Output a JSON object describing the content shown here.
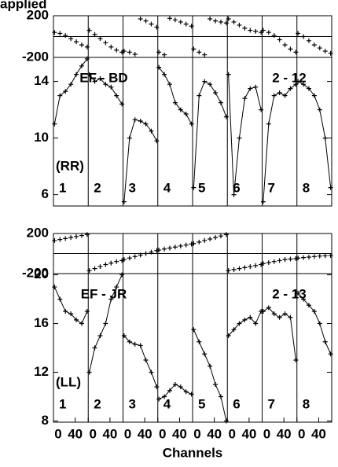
{
  "chart_data": [
    {
      "type": "scatter",
      "title": "applied",
      "color": "#000000",
      "zero_line": true,
      "x": [
        2,
        12,
        22,
        32,
        42,
        52,
        62
      ],
      "xlim": [
        0,
        64
      ],
      "ylim": [
        -200,
        200
      ],
      "yticks": [
        200,
        -200
      ],
      "panels": [
        {
          "values": [
            40,
            30,
            10,
            -20,
            -50,
            -80,
            -100
          ]
        },
        {
          "values": [
            60,
            20,
            -20,
            -60,
            -100,
            -130,
            -150
          ]
        },
        {
          "values": [
            -140,
            -150,
            -170,
            170,
            150,
            120,
            90
          ]
        },
        {
          "values": [
            -150,
            -175,
            175,
            160,
            140,
            120,
            100
          ]
        },
        {
          "values": [
            -120,
            -150,
            -175,
            170,
            150,
            140,
            130
          ]
        },
        {
          "values": [
            170,
            140,
            110,
            80,
            60,
            50,
            40
          ]
        },
        {
          "values": [
            60,
            40,
            10,
            -30,
            -80,
            -120,
            -150
          ]
        },
        {
          "values": [
            30,
            0,
            -40,
            -80,
            -110,
            -140,
            -160
          ]
        }
      ]
    },
    {
      "type": "line",
      "color": "#000000",
      "baseline": "EF - BD",
      "if_pair": "2 - 12",
      "polarization": "(RR)",
      "x": [
        2,
        12,
        22,
        32,
        42,
        52,
        62
      ],
      "xlim": [
        0,
        64
      ],
      "ylim": [
        5.2,
        15.7
      ],
      "yticks": [
        14,
        10,
        6
      ],
      "panels": [
        {
          "label": "1",
          "values": [
            11,
            13,
            13.3,
            13.8,
            14.5,
            15.1,
            15.6
          ]
        },
        {
          "label": "2",
          "values": [
            14.5,
            14,
            14.2,
            13.8,
            13.6,
            13,
            12.4
          ]
        },
        {
          "label": "3",
          "values": [
            5.5,
            10,
            11.3,
            11.2,
            11,
            10.5,
            9.8
          ]
        },
        {
          "label": "4",
          "values": [
            15,
            14.5,
            13.8,
            12.5,
            12,
            11.7,
            11
          ]
        },
        {
          "label": "5",
          "values": [
            6.5,
            13,
            14,
            13.8,
            13.2,
            12.5,
            11.5
          ]
        },
        {
          "label": "6",
          "values": [
            14.5,
            6,
            10,
            12.8,
            13.5,
            13.6,
            12
          ]
        },
        {
          "label": "7",
          "values": [
            5.5,
            11,
            13,
            13.2,
            13,
            13.5,
            13.8
          ]
        },
        {
          "label": "8",
          "values": [
            14,
            13.8,
            13.5,
            13,
            12,
            10,
            6.5
          ]
        }
      ]
    },
    {
      "type": "scatter",
      "color": "#000000",
      "zero_line": true,
      "x": [
        2,
        12,
        22,
        32,
        42,
        52,
        62
      ],
      "xlim": [
        0,
        64
      ],
      "ylim": [
        -200,
        200
      ],
      "yticks": [
        200,
        -200
      ],
      "panels": [
        {
          "values": [
            130,
            140,
            150,
            160,
            170,
            180,
            190
          ]
        },
        {
          "values": [
            -170,
            -150,
            -130,
            -110,
            -95,
            -80,
            -70
          ]
        },
        {
          "values": [
            -60,
            -45,
            -30,
            -15,
            0,
            15,
            30
          ]
        },
        {
          "values": [
            35,
            45,
            55,
            65,
            75,
            85,
            95
          ]
        },
        {
          "values": [
            100,
            115,
            130,
            145,
            160,
            175,
            190
          ]
        },
        {
          "values": [
            -170,
            -160,
            -150,
            -140,
            -130,
            -120,
            -110
          ]
        },
        {
          "values": [
            -100,
            -90,
            -80,
            -70,
            -60,
            -55,
            -50
          ]
        },
        {
          "values": [
            -45,
            -40,
            -35,
            -30,
            -25,
            -22,
            -20
          ]
        }
      ]
    },
    {
      "type": "line",
      "color": "#000000",
      "baseline": "EF - JR",
      "if_pair": "2 - 13",
      "polarization": "(LL)",
      "xlabel": "Channels",
      "x": [
        2,
        12,
        22,
        32,
        42,
        52,
        62
      ],
      "xlim": [
        0,
        64
      ],
      "xticks": [
        0,
        40
      ],
      "ylim": [
        7.9,
        20.1
      ],
      "yticks": [
        20,
        16,
        12,
        8
      ],
      "panels": [
        {
          "label": "1",
          "values": [
            19,
            18,
            17,
            16.8,
            16.3,
            16,
            17
          ]
        },
        {
          "label": "2",
          "values": [
            12,
            14,
            15,
            16,
            18,
            19,
            20
          ]
        },
        {
          "label": "3",
          "values": [
            15,
            14.5,
            14.3,
            14.2,
            13,
            12,
            10.8
          ]
        },
        {
          "label": "4",
          "values": [
            9.8,
            10,
            10.5,
            11,
            10.8,
            10.4,
            10.2
          ]
        },
        {
          "label": "5",
          "values": [
            15.5,
            14.5,
            13.5,
            12.5,
            11,
            10,
            8
          ]
        },
        {
          "label": "6",
          "values": [
            15,
            15.5,
            16,
            16.3,
            16.5,
            16,
            17
          ]
        },
        {
          "label": "7",
          "values": [
            17,
            17.3,
            16.8,
            16.5,
            16.8,
            16.5,
            13
          ]
        },
        {
          "label": "8",
          "values": [
            18.5,
            18,
            17.5,
            17,
            16,
            14.5,
            13.5
          ]
        }
      ]
    }
  ]
}
